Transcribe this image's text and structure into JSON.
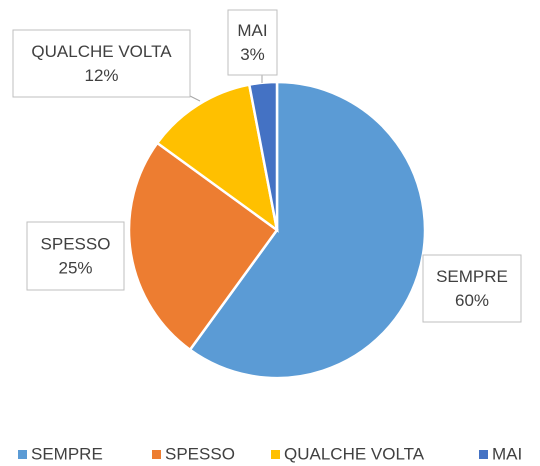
{
  "chart_data": {
    "type": "pie",
    "categories": [
      "SEMPRE",
      "SPESSO",
      "QUALCHE VOLTA",
      "MAI"
    ],
    "values": [
      60,
      25,
      12,
      3
    ],
    "value_labels": [
      "60%",
      "25%",
      "12%",
      "3%"
    ],
    "colors": [
      "#5b9bd5",
      "#ed7d31",
      "#ffc000",
      "#4472c4"
    ],
    "legend": "bottom"
  }
}
